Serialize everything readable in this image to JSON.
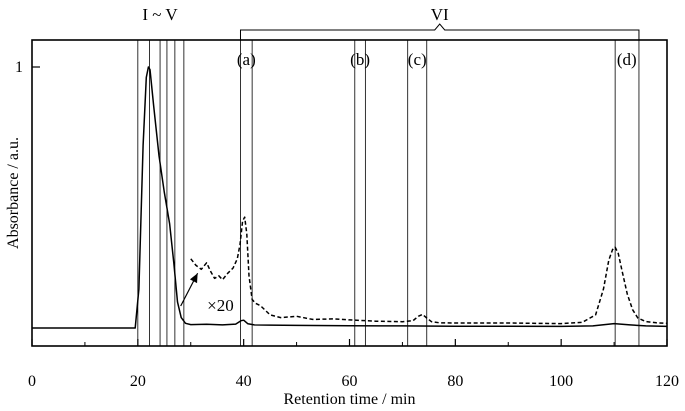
{
  "chart_data": {
    "type": "line",
    "xlabel": "Retention time / min",
    "ylabel": "Absorbance / a.u.",
    "xlim": [
      0,
      120
    ],
    "ylim": [
      -0.02,
      1.1
    ],
    "x_ticks": [
      0,
      20,
      40,
      60,
      80,
      100,
      120
    ],
    "x_tick_labels": [
      "0",
      "20",
      "40",
      "60",
      "80",
      "100",
      "120"
    ],
    "y_ticks": [
      1
    ],
    "y_tick_labels": [
      "1"
    ],
    "grid": false,
    "legend": "none",
    "series": [
      {
        "style": "solid",
        "color": "#000000",
        "x": [
          0,
          19.5,
          20.2,
          21.0,
          21.6,
          22.0,
          22.3,
          23.0,
          24.0,
          25.0,
          26.0,
          26.8,
          27.5,
          28.2,
          29.0,
          30.0,
          33.0,
          36.0,
          38.5,
          39.5,
          40.0,
          40.8,
          42.0,
          45.0,
          50.0,
          60.0,
          70.0,
          80.0,
          90.0,
          100.0,
          106.0,
          110.0,
          113.0,
          116.0,
          120.0
        ],
        "y": [
          0.0,
          0.0,
          0.15,
          0.7,
          0.96,
          1.0,
          0.99,
          0.85,
          0.66,
          0.52,
          0.4,
          0.25,
          0.1,
          0.04,
          0.018,
          0.013,
          0.014,
          0.012,
          0.015,
          0.028,
          0.03,
          0.016,
          0.012,
          0.011,
          0.01,
          0.009,
          0.008,
          0.007,
          0.007,
          0.006,
          0.008,
          0.017,
          0.012,
          0.008,
          0.006
        ]
      },
      {
        "style": "dashed",
        "color": "#000000",
        "annotation": "×20",
        "x": [
          30.0,
          31.0,
          32.0,
          33.0,
          33.8,
          34.5,
          35.3,
          36.0,
          37.0,
          38.0,
          38.8,
          39.3,
          39.8,
          40.2,
          40.6,
          41.0,
          41.6,
          42.2,
          43.2,
          45.0,
          47.0,
          50.0,
          53.0,
          57.0,
          60.0,
          65.0,
          70.0,
          72.0,
          73.0,
          73.8,
          74.5,
          75.5,
          77.0,
          80.0,
          90.0,
          100.0,
          104.0,
          106.5,
          108.0,
          109.0,
          109.7,
          110.2,
          110.8,
          111.5,
          112.5,
          113.5,
          114.5,
          116.0,
          118.0,
          120.0
        ],
        "y": [
          0.265,
          0.24,
          0.225,
          0.25,
          0.215,
          0.19,
          0.2,
          0.185,
          0.21,
          0.23,
          0.265,
          0.32,
          0.41,
          0.425,
          0.36,
          0.2,
          0.11,
          0.095,
          0.085,
          0.05,
          0.04,
          0.045,
          0.033,
          0.035,
          0.031,
          0.026,
          0.024,
          0.028,
          0.045,
          0.052,
          0.04,
          0.024,
          0.02,
          0.019,
          0.019,
          0.017,
          0.022,
          0.05,
          0.15,
          0.26,
          0.3,
          0.31,
          0.285,
          0.22,
          0.13,
          0.07,
          0.038,
          0.025,
          0.02,
          0.018
        ]
      }
    ],
    "fraction_boundaries": [
      20,
      22.2,
      24.2,
      25.5,
      27.0,
      28.7,
      39.4,
      41.6,
      61.0,
      63.0,
      71.0,
      74.6,
      110.2,
      114.7
    ],
    "fraction_group_label": "I ~ V",
    "bracket": {
      "label": "VI",
      "from": 39.4,
      "to": 114.7
    },
    "peak_labels": [
      {
        "label": "(a)",
        "x": 40.5
      },
      {
        "label": "(b)",
        "x": 62.0
      },
      {
        "label": "(c)",
        "x": 72.8
      },
      {
        "label": "(d)",
        "x": 112.4
      }
    ],
    "annotation_text": "×20"
  }
}
